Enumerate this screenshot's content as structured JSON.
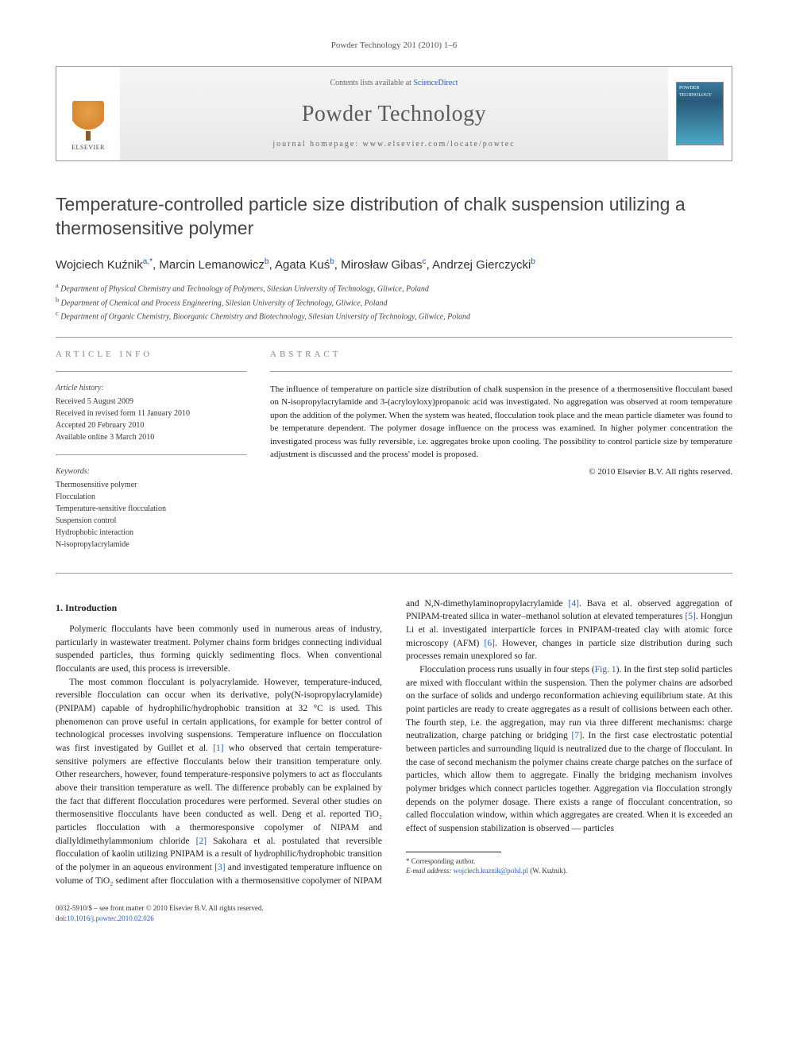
{
  "header": {
    "journal_ref": "Powder Technology 201 (2010) 1–6",
    "contents_prefix": "Contents lists available at ",
    "contents_link": "ScienceDirect",
    "journal_name": "Powder Technology",
    "homepage_prefix": "journal homepage: ",
    "homepage_url": "www.elsevier.com/locate/powtec",
    "publisher_name": "ELSEVIER",
    "cover_label": "POWDER TECHNOLOGY"
  },
  "article": {
    "title": "Temperature-controlled particle size distribution of chalk suspension utilizing a thermosensitive polymer",
    "authors_html_parts": {
      "a1": "Wojciech Kuźnik",
      "a1_sup": "a,",
      "a1_star": "*",
      "a2": ", Marcin Lemanowicz",
      "a2_sup": "b",
      "a3": ", Agata Kuś",
      "a3_sup": "b",
      "a4": ", Mirosław Gibas",
      "a4_sup": "c",
      "a5": ", Andrzej Gierczycki",
      "a5_sup": "b"
    },
    "affiliations": {
      "a": "Department of Physical Chemistry and Technology of Polymers, Silesian University of Technology, Gliwice, Poland",
      "b": "Department of Chemical and Process Engineering, Silesian University of Technology, Gliwice, Poland",
      "c": "Department of Organic Chemistry, Bioorganic Chemistry and Biotechnology, Silesian University of Technology, Gliwice, Poland"
    }
  },
  "info": {
    "section_label": "ARTICLE INFO",
    "history_label": "Article history:",
    "received": "Received 5 August 2009",
    "revised": "Received in revised form 11 January 2010",
    "accepted": "Accepted 20 February 2010",
    "online": "Available online 3 March 2010",
    "keywords_label": "Keywords:",
    "kw1": "Thermosensitive polymer",
    "kw2": "Flocculation",
    "kw3": "Temperature-sensitive flocculation",
    "kw4": "Suspension control",
    "kw5": "Hydrophobic interaction",
    "kw6": "N-isopropylacrylamide"
  },
  "abstract": {
    "section_label": "ABSTRACT",
    "text": "The influence of temperature on particle size distribution of chalk suspension in the presence of a thermosensitive flocculant based on N-isopropylacrylamide and 3-(acryloyloxy)propanoic acid was investigated. No aggregation was observed at room temperature upon the addition of the polymer. When the system was heated, flocculation took place and the mean particle diameter was found to be temperature dependent. The polymer dosage influence on the process was examined. In higher polymer concentration the investigated process was fully reversible, i.e. aggregates broke upon cooling. The possibility to control particle size by temperature adjustment is discussed and the process' model is proposed.",
    "copyright": "© 2010 Elsevier B.V. All rights reserved."
  },
  "body": {
    "intro_heading": "1. Introduction",
    "p1": "Polymeric flocculants have been commonly used in numerous areas of industry, particularly in wastewater treatment. Polymer chains form bridges connecting individual suspended particles, thus forming quickly sedimenting flocs. When conventional flocculants are used, this process is irreversible.",
    "p2a": "The most common flocculant is polyacrylamide. However, temperature-induced, reversible flocculation can occur when its derivative, poly(N-isopropylacrylamide) (PNIPAM) capable of hydrophilic/hydrophobic transition at 32 °C is used. This phenomenon can prove useful in certain applications, for example for better control of technological processes involving suspensions. Temperature influence on flocculation was first investigated by Guillet et al. ",
    "p2_ref1": "[1]",
    "p2b": " who observed that certain temperature-sensitive polymers are effective flocculants below their transition temperature only. Other researchers, however, found temperature-responsive polymers to act as flocculants above their transition temperature as well. The difference probably can be explained by the fact that different flocculation procedures were performed. Several other studies on thermosensitive flocculants have been conducted as well. Deng et al. reported TiO₂ particles flocculation with a thermoresponsive copolymer of NIPAM ",
    "p2c": "and diallyldimethylammonium chloride ",
    "p2_ref2": "[2]",
    "p2d": " Sakohara et al. postulated that reversible flocculation of kaolin utilizing PNIPAM is a result of hydrophilic/hydrophobic transition of the polymer in an aqueous environment ",
    "p2_ref3": "[3]",
    "p2e": " and investigated temperature influence on volume of TiO₂ sediment after flocculation with a thermosensitive copolymer of NIPAM and N,N-dimethylaminopropylacrylamide ",
    "p2_ref4": "[4]",
    "p2f": ". Bava et al. observed aggregation of PNIPAM-treated silica in water–methanol solution at elevated temperatures ",
    "p2_ref5": "[5]",
    "p2g": ". Hongjun Li et al. investigated interparticle forces in PNIPAM-treated clay with atomic force microscopy (AFM) ",
    "p2_ref6": "[6]",
    "p2h": ". However, changes in particle size distribution during such processes remain unexplored so far.",
    "p3a": "Flocculation process runs usually in four steps (",
    "p3_fig": "Fig. 1",
    "p3b": "). In the first step solid particles are mixed with flocculant within the suspension. Then the polymer chains are adsorbed on the surface of solids and undergo reconformation achieving equilibrium state. At this point particles are ready to create aggregates as a result of collisions between each other. The fourth step, i.e. the aggregation, may run via three different mechanisms: charge neutralization, charge patching or bridging ",
    "p3_ref7": "[7]",
    "p3c": ". In the first case electrostatic potential between particles and surrounding liquid is neutralized due to the charge of flocculant. In the case of second mechanism the polymer chains create charge patches on the surface of particles, which allow them to aggregate. Finally the bridging mechanism involves polymer bridges which connect particles together. Aggregation via flocculation strongly depends on the polymer dosage. There exists a range of flocculant concentration, so called flocculation window, within which aggregates are created. When it is exceeded an effect of suspension stabilization is observed — particles"
  },
  "footnote": {
    "corr_label": "* Corresponding author.",
    "email_label": "E-mail address:",
    "email": "wojciech.kuznik@polsl.pl",
    "email_name": " (W. Kuźnik)."
  },
  "footer": {
    "issn_line": "0032-5910/$ – see front matter © 2010 Elsevier B.V. All rights reserved.",
    "doi_prefix": "doi:",
    "doi": "10.1016/j.powtec.2010.02.026"
  },
  "colors": {
    "link": "#2a5db0",
    "text": "#222222",
    "muted": "#888888",
    "border": "#999999"
  }
}
